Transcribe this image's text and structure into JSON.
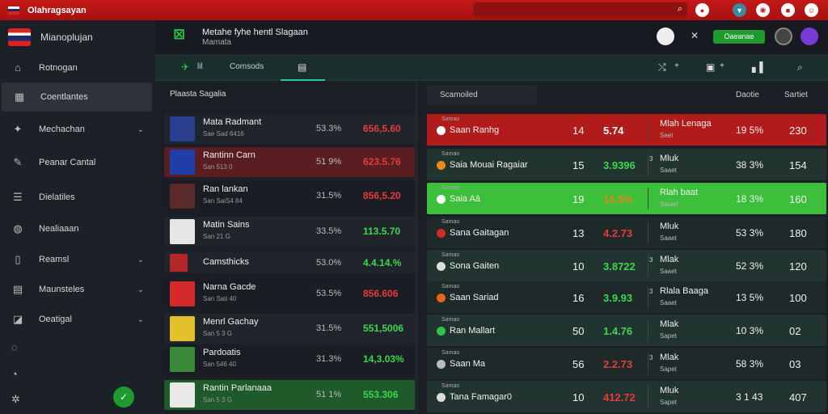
{
  "app": {
    "title": "Olahragsayan"
  },
  "sidebar": {
    "brand": "Mianoplujan",
    "items": [
      {
        "label": "Rotnogan",
        "icon": "home-icon"
      },
      {
        "label": "Coentlantes",
        "icon": "dashboard-icon",
        "active": true
      },
      {
        "label": "Mechachan",
        "icon": "soccer-icon",
        "chevron": true
      },
      {
        "label": "Peanar Cantal",
        "icon": "edit-icon"
      },
      {
        "label": "Dielatiles",
        "icon": "list-icon"
      },
      {
        "label": "Nealiaaan",
        "icon": "ball-icon"
      },
      {
        "label": "Reamsl",
        "icon": "bookmark-icon",
        "chevron": true
      },
      {
        "label": "Maunsteles",
        "icon": "grid-icon",
        "chevron": true
      },
      {
        "label": "Oeatigal",
        "icon": "chart-icon",
        "chevron": true
      }
    ]
  },
  "header": {
    "title": "Metahe fyhe hentl Slagaan",
    "subtitle": "Mamata",
    "pill": "Oaeanae"
  },
  "tabs": {
    "first": "lil",
    "second": "Comsods"
  },
  "players": {
    "title": "Plaasta Sagalia",
    "rows": [
      {
        "name": "Mata Radmant",
        "sub": "Sae Sad 6416",
        "pct": "53.3%",
        "value": "656,5.60",
        "trend": "red",
        "style": "normal",
        "img": "#2a3f8f"
      },
      {
        "name": "Rantinn Carn",
        "sub": "San 513 0",
        "pct": "51 9%",
        "value": "623.5.76",
        "trend": "red",
        "style": "red",
        "img": "#1f3ea8"
      },
      {
        "name": "Ran lankan",
        "sub": "San SaiS4 84",
        "pct": "31.5%",
        "value": "856,5.20",
        "trend": "red",
        "style": "dark",
        "img": "#5a2a2a"
      },
      {
        "name": "Matin Sains",
        "sub": "San 21 G",
        "pct": "33.5%",
        "value": "113.5.70",
        "trend": "green",
        "style": "normal",
        "img": "#e6e6e6"
      },
      {
        "name": "Camsthicks",
        "sub": "",
        "pct": "53.0%",
        "value": "4.4.14.%",
        "trend": "green",
        "style": "normal",
        "img": "#b3262a"
      },
      {
        "name": "Narna Gacde",
        "sub": "San Sati 40",
        "pct": "53.5%",
        "value": "856.606",
        "trend": "red",
        "style": "dark",
        "img": "#d42a2a"
      },
      {
        "name": "Menrl Gachay",
        "sub": "San 5 3 G",
        "pct": "31.5%",
        "value": "551,5006",
        "trend": "green",
        "style": "normal",
        "img": "#e2c12a"
      },
      {
        "name": "Pardoatis",
        "sub": "San 546 40",
        "pct": "31.3%",
        "value": "14,3.03%",
        "trend": "green",
        "style": "dark",
        "img": "#3a8a3a"
      },
      {
        "name": "Rantin Parlanaaa",
        "sub": "San 5 3 G",
        "pct": "51 1%",
        "value": "553.306",
        "trend": "green",
        "style": "green",
        "img": "#e8e8e8"
      }
    ]
  },
  "matches": {
    "filter": "Scamoiled",
    "col1": "Daotie",
    "col2": "Sartiet",
    "rows": [
      {
        "tag": "Samao",
        "name": "Saan Ranhg",
        "n1": "14",
        "n2": "5.74",
        "n2c": "white",
        "mark": "",
        "t1": "Mlah Lenaga",
        "t2": "Seet",
        "p": "19 5%",
        "s": "230",
        "style": "red",
        "dot": "#ffffff"
      },
      {
        "tag": "Samao",
        "name": "Saia  Mouai Ragaiar",
        "n1": "15",
        "n2": "3.9396",
        "n2c": "green",
        "mark": "3",
        "t1": "Mluk",
        "t2": "Saaet",
        "p": "38 3%",
        "s": "154",
        "style": "normal",
        "dot": "#e88a1a"
      },
      {
        "tag": "Samao",
        "name": "Saia  Aā",
        "n1": "19",
        "n2": "15.5%",
        "n2c": "orange",
        "mark": "",
        "t1": "Rlah baat",
        "t2": "Saiaet",
        "p": "18 3%",
        "s": "160",
        "style": "bright",
        "dot": "#ffffff"
      },
      {
        "tag": "Samao",
        "name": "Sana  Gaitagan",
        "n1": "13",
        "n2": "4.2.73",
        "n2c": "red",
        "mark": "",
        "t1": "Mluk",
        "t2": "Saaet",
        "p": "53 3%",
        "s": "180",
        "style": "alt",
        "dot": "#d22a2a"
      },
      {
        "tag": "Samao",
        "name": "Sona  Gaiten",
        "n1": "10",
        "n2": "3.8722",
        "n2c": "green",
        "mark": "3",
        "t1": "Mlak",
        "t2": "Saaet",
        "p": "52 3%",
        "s": "120",
        "style": "normal",
        "dot": "#dddddd"
      },
      {
        "tag": "Samao",
        "name": "Saan  Sariad",
        "n1": "16",
        "n2": "3.9.93",
        "n2c": "green",
        "mark": "3",
        "t1": "Rlala Baaga",
        "t2": "Saaet",
        "p": "13 5%",
        "s": "100",
        "style": "alt",
        "dot": "#e8641a"
      },
      {
        "tag": "Samao",
        "name": "Ran  Mallart",
        "n1": "50",
        "n2": "1.4.76",
        "n2c": "green",
        "mark": "",
        "t1": "Mlak",
        "t2": "Sapet",
        "p": "10 3%",
        "s": "02",
        "style": "normal",
        "dot": "#2ec44a"
      },
      {
        "tag": "Samao",
        "name": "Saan  Ma",
        "n1": "56",
        "n2": "2.2.73",
        "n2c": "red",
        "mark": "3",
        "t1": "Mlak",
        "t2": "Sapet",
        "p": "58 3%",
        "s": "03",
        "style": "alt",
        "dot": "#bbbbbb"
      },
      {
        "tag": "Samao",
        "name": "Tana  Famagar0",
        "n1": "10",
        "n2": "412.72",
        "n2c": "red",
        "mark": "",
        "t1": "Mluk",
        "t2": "Sapet",
        "p": "3 1 43",
        "s": "407",
        "style": "normal",
        "dot": "#dddddd"
      }
    ]
  }
}
